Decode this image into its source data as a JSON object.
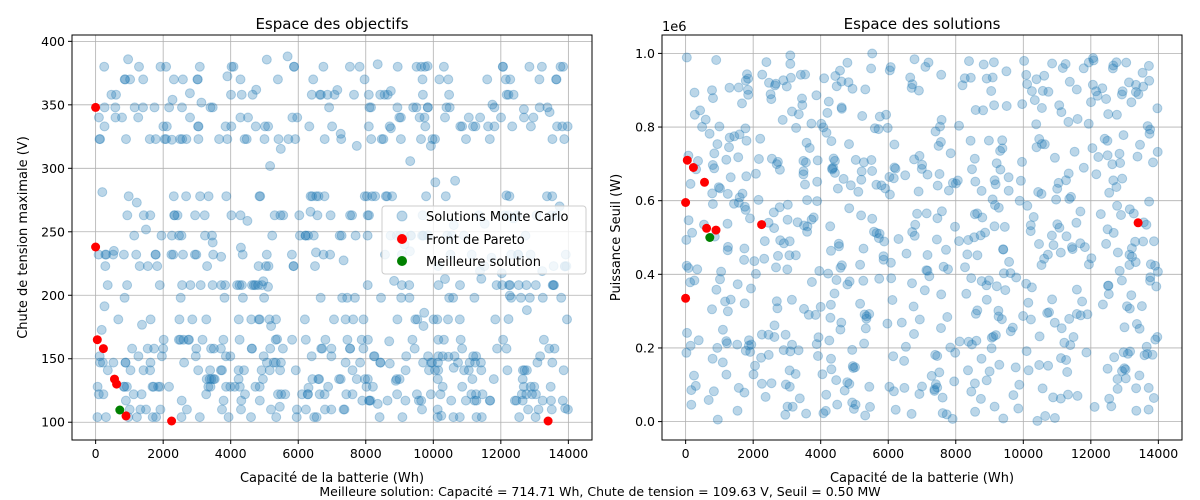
{
  "figure_caption": "Meilleure solution: Capacité = 714.71 Wh, Chute de tension = 109.63 V, Seuil = 0.50 MW",
  "chart_data": [
    {
      "type": "scatter",
      "title": "Espace des objectifs",
      "xlabel": "Capacité de la batterie (Wh)",
      "ylabel": "Chute de tension maximale (V)",
      "xlim": [
        -700,
        14700
      ],
      "ylim": [
        86,
        405
      ],
      "x_ticks": [
        0,
        2000,
        4000,
        6000,
        8000,
        10000,
        12000,
        14000
      ],
      "x_tick_labels": [
        "0",
        "2000",
        "4000",
        "6000",
        "8000",
        "10000",
        "12000",
        "14000"
      ],
      "y_ticks": [
        100,
        150,
        200,
        250,
        300,
        350,
        400
      ],
      "y_tick_labels": [
        "100",
        "150",
        "200",
        "250",
        "300",
        "350",
        "400"
      ],
      "y_levels": [
        104,
        110,
        117,
        122,
        128,
        134,
        141,
        147,
        152,
        158,
        165,
        181,
        198,
        208,
        223,
        232,
        247,
        263,
        278,
        323,
        333,
        340,
        348,
        358,
        370,
        380
      ],
      "grid": true,
      "legend": {
        "placement": "center-right",
        "entries": [
          "Solutions Monte Carlo",
          "Front de Pareto",
          "Meilleure solution"
        ]
      },
      "series": [
        {
          "name": "Solutions Monte Carlo",
          "color": "#1f77b4",
          "alpha": 0.3,
          "count": 700,
          "x_range": [
            0,
            14000
          ],
          "y_range": [
            100,
            390
          ]
        },
        {
          "name": "Front de Pareto",
          "color": "#ff0000",
          "points": [
            [
              0,
              348
            ],
            [
              0,
              238
            ],
            [
              50,
              165
            ],
            [
              230,
              158
            ],
            [
              560,
              134
            ],
            [
              620,
              130
            ],
            [
              900,
              105
            ],
            [
              2250,
              101
            ],
            [
              13400,
              101
            ]
          ]
        },
        {
          "name": "Meilleure solution",
          "color": "#008000",
          "points": [
            [
              714.71,
              109.63
            ]
          ]
        }
      ]
    },
    {
      "type": "scatter",
      "title": "Espace des solutions",
      "xlabel": "Capacité de la batterie (Wh)",
      "ylabel": "Puissance Seuil (W)",
      "axis_offset_label": "1e6",
      "xlim": [
        -700,
        14700
      ],
      "ylim": [
        -0.05,
        1.05
      ],
      "x_ticks": [
        0,
        2000,
        4000,
        6000,
        8000,
        10000,
        12000,
        14000
      ],
      "x_tick_labels": [
        "0",
        "2000",
        "4000",
        "6000",
        "8000",
        "10000",
        "12000",
        "14000"
      ],
      "y_ticks": [
        0,
        0.2,
        0.4,
        0.6,
        0.8,
        1.0
      ],
      "y_tick_labels": [
        "0.0",
        "0.2",
        "0.4",
        "0.6",
        "0.8",
        "1.0"
      ],
      "grid": true,
      "series": [
        {
          "name": "Solutions Monte Carlo",
          "color": "#1f77b4",
          "alpha": 0.3,
          "count": 700,
          "x_range": [
            0,
            14000
          ],
          "y_range": [
            0,
            1.0
          ]
        },
        {
          "name": "Front de Pareto",
          "color": "#ff0000",
          "points": [
            [
              0,
              0.595
            ],
            [
              0,
              0.335
            ],
            [
              50,
              0.71
            ],
            [
              230,
              0.69
            ],
            [
              560,
              0.65
            ],
            [
              620,
              0.525
            ],
            [
              900,
              0.52
            ],
            [
              2250,
              0.535
            ],
            [
              13400,
              0.54
            ]
          ]
        },
        {
          "name": "Meilleure solution",
          "color": "#008000",
          "points": [
            [
              714.71,
              0.5
            ]
          ]
        }
      ]
    }
  ]
}
